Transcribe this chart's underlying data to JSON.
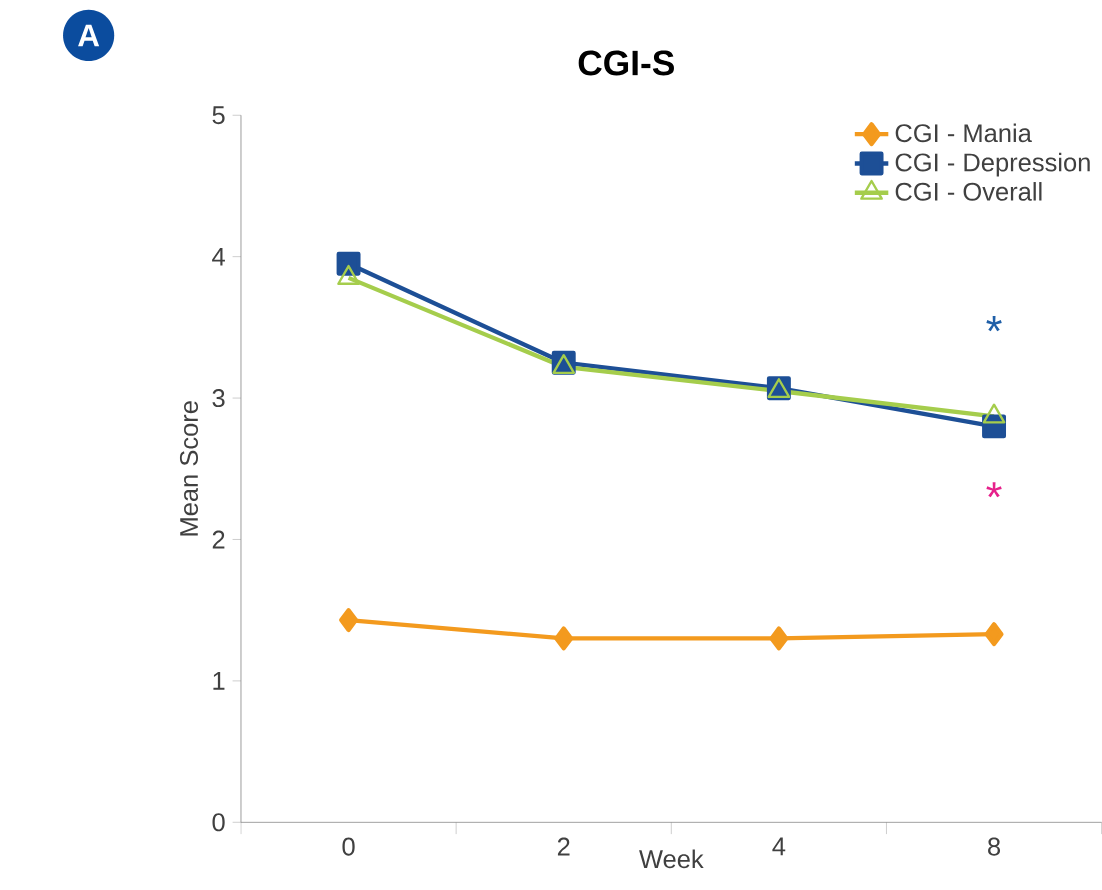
{
  "chart_data": {
    "type": "line",
    "title": "CGI-S",
    "xlabel": "Week",
    "ylabel": "Mean Score",
    "categories": [
      "0",
      "2",
      "4",
      "8"
    ],
    "series": [
      {
        "name": "CGI - Mania",
        "color": "#f39a1e",
        "marker": "diamond",
        "values": [
          1.43,
          1.3,
          1.3,
          1.33
        ]
      },
      {
        "name": "CGI - Depression",
        "color": "#1d4f96",
        "marker": "square",
        "values": [
          3.95,
          3.25,
          3.07,
          2.8
        ]
      },
      {
        "name": "CGI - Overall",
        "color": "#a5cd4c",
        "marker": "triangle",
        "values": [
          3.85,
          3.22,
          3.05,
          2.87
        ]
      }
    ],
    "ylim": [
      0,
      5
    ],
    "yticks": [
      0,
      1,
      2,
      3,
      4,
      5
    ],
    "legend": "top right",
    "grid": false,
    "annotations": [
      "A",
      "*",
      "*"
    ]
  }
}
